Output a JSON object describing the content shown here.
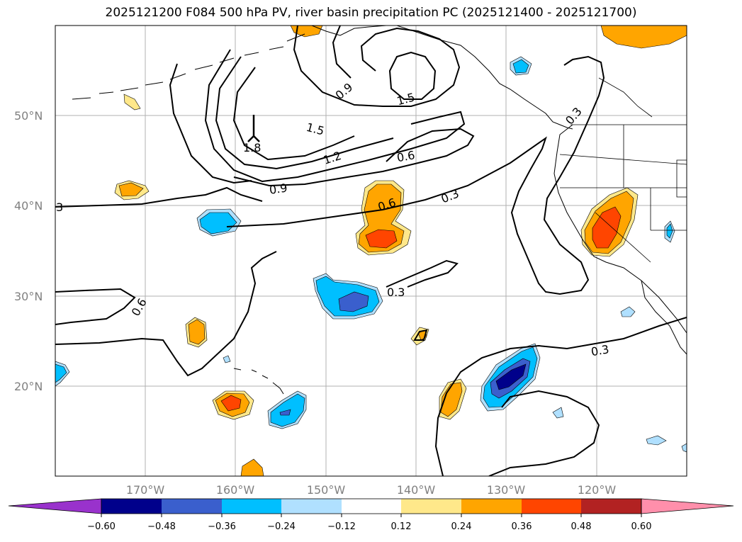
{
  "title": "2025121200 F084 500 hPa PV, river basin precipitation PC (2025121400 - 2025121700)",
  "map": {
    "lat_labels": [
      "50°N",
      "40°N",
      "30°N",
      "20°N"
    ],
    "lon_labels": [
      "170°W",
      "160°W",
      "150°W",
      "140°W",
      "130°W",
      "120°W"
    ],
    "extent": {
      "lon": [
        -180,
        -110
      ],
      "lat": [
        10,
        60
      ]
    },
    "contour_labels": [
      "0.9",
      "1.5",
      "1.5",
      "1.2",
      "0.9",
      "0.6",
      "0.6",
      "0.3",
      "0.3",
      "0.3",
      "0.6",
      "0.3",
      "1.8",
      "3"
    ],
    "colors": {
      "pos_012": "#ffe88a",
      "pos_024": "#ffa500",
      "pos_036": "#ff4500",
      "neg_012": "#b0e0ff",
      "neg_024": "#00bfff",
      "neg_036": "#3a5fcd",
      "neg_048": "#00008b",
      "grid": "#b0b0b0"
    }
  },
  "colorbar": {
    "ticks": [
      "−0.60",
      "−0.48",
      "−0.36",
      "−0.24",
      "−0.12",
      "0.12",
      "0.24",
      "0.36",
      "0.48",
      "0.60"
    ],
    "colors": [
      "#9932cc",
      "#00008b",
      "#3a5fcd",
      "#00bfff",
      "#b0e0ff",
      "#ffffff",
      "#ffe88a",
      "#ffa500",
      "#ff4500",
      "#b22222",
      "#ff8fab"
    ]
  }
}
